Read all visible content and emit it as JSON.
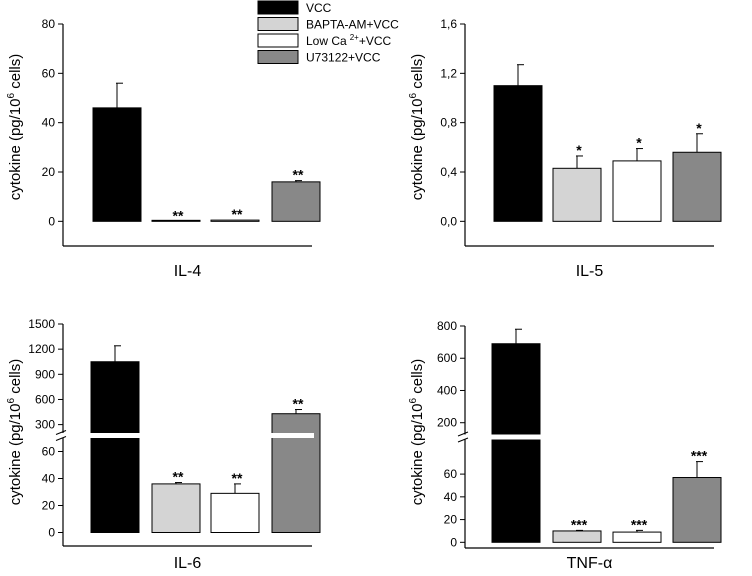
{
  "legend": [
    {
      "name": "VCC",
      "color": "#000000"
    },
    {
      "name": "BAPTA-AM+VCC",
      "color": "#d4d4d4"
    },
    {
      "name": "Low Ca",
      "sup": "2+",
      "suffix": "+VCC",
      "color": "#ffffff"
    },
    {
      "name": "U73122+VCC",
      "color": "#888888"
    }
  ],
  "chart_data": [
    {
      "type": "bar",
      "title": "",
      "xlabel": "IL-4",
      "ylabel": "cytokine (pg/10⁶ cells)",
      "ylabel_main": "cytokine (pg/10",
      "ylabel_sup": "6",
      "ylabel_tail": " cells)",
      "ylim": [
        -10,
        80
      ],
      "ticks": [
        0,
        20,
        40,
        60,
        80
      ],
      "tick_labels": [
        "0",
        "20",
        "40",
        "60",
        "80"
      ],
      "series": [
        {
          "name": "VCC",
          "value": 46,
          "error": 10,
          "sig": ""
        },
        {
          "name": "BAPTA-AM+VCC",
          "value": 0,
          "error": 0,
          "sig": "**"
        },
        {
          "name": "Low Ca2+ +VCC",
          "value": 0.5,
          "error": 0,
          "sig": "**"
        },
        {
          "name": "U73122+VCC",
          "value": 16,
          "error": 0.5,
          "sig": "**"
        }
      ]
    },
    {
      "type": "bar",
      "title": "",
      "xlabel": "IL-5",
      "ylabel": "cytokine (pg/10⁶ cells)",
      "ylabel_main": "cytokine (pg/10",
      "ylabel_sup": "6",
      "ylabel_tail": " cells)",
      "ylim": [
        -0.2,
        1.6
      ],
      "ticks": [
        0.0,
        0.4,
        0.8,
        1.2,
        1.6
      ],
      "tick_labels": [
        "0,0",
        "0,4",
        "0,8",
        "1,2",
        "1,6"
      ],
      "series": [
        {
          "name": "VCC",
          "value": 1.1,
          "error": 0.17,
          "sig": ""
        },
        {
          "name": "BAPTA-AM+VCC",
          "value": 0.43,
          "error": 0.1,
          "sig": "*"
        },
        {
          "name": "Low Ca2+ +VCC",
          "value": 0.49,
          "error": 0.1,
          "sig": "*"
        },
        {
          "name": "U73122+VCC",
          "value": 0.56,
          "error": 0.15,
          "sig": "*"
        }
      ]
    },
    {
      "type": "bar",
      "title": "",
      "xlabel": "IL-6",
      "ylabel": "cytokine (pg/10⁶ cells)",
      "ylabel_main": "cytokine (pg/10",
      "ylabel_sup": "6",
      "ylabel_tail": " cells)",
      "broken_axis": true,
      "lower_range": [
        -10,
        70
      ],
      "upper_range": [
        200,
        1500
      ],
      "lower_ticks": [
        0,
        20,
        40,
        60
      ],
      "lower_tick_labels": [
        "0",
        "20",
        "40",
        "60"
      ],
      "upper_ticks": [
        300,
        600,
        900,
        1200,
        1500
      ],
      "upper_tick_labels": [
        "300",
        "600",
        "900",
        "1200",
        "1500"
      ],
      "series": [
        {
          "name": "VCC",
          "value": 1050,
          "error": 190,
          "sig": ""
        },
        {
          "name": "BAPTA-AM+VCC",
          "value": 36,
          "error": 1,
          "sig": "**"
        },
        {
          "name": "Low Ca2+ +VCC",
          "value": 29,
          "error": 7,
          "sig": "**"
        },
        {
          "name": "U73122+VCC",
          "value": 430,
          "error": 50,
          "sig": "**"
        }
      ]
    },
    {
      "type": "bar",
      "title": "",
      "xlabel": "TNF-α",
      "ylabel": "cytokine (pg/10⁶ cells)",
      "ylabel_main": "cytokine (pg/10",
      "ylabel_sup": "6",
      "ylabel_tail": " cells)",
      "broken_axis": true,
      "lower_range": [
        -5,
        90
      ],
      "upper_range": [
        130,
        800
      ],
      "lower_ticks": [
        0,
        20,
        40,
        60
      ],
      "lower_tick_labels": [
        "0",
        "20",
        "40",
        "60"
      ],
      "upper_ticks": [
        200,
        400,
        600,
        800
      ],
      "upper_tick_labels": [
        "200",
        "400",
        "600",
        "800"
      ],
      "series": [
        {
          "name": "VCC",
          "value": 690,
          "error": 90,
          "sig": ""
        },
        {
          "name": "BAPTA-AM+VCC",
          "value": 10,
          "error": 0.5,
          "sig": "***"
        },
        {
          "name": "Low Ca2+ +VCC",
          "value": 9,
          "error": 1.5,
          "sig": "***"
        },
        {
          "name": "U73122+VCC",
          "value": 57,
          "error": 14,
          "sig": "***"
        }
      ]
    }
  ]
}
